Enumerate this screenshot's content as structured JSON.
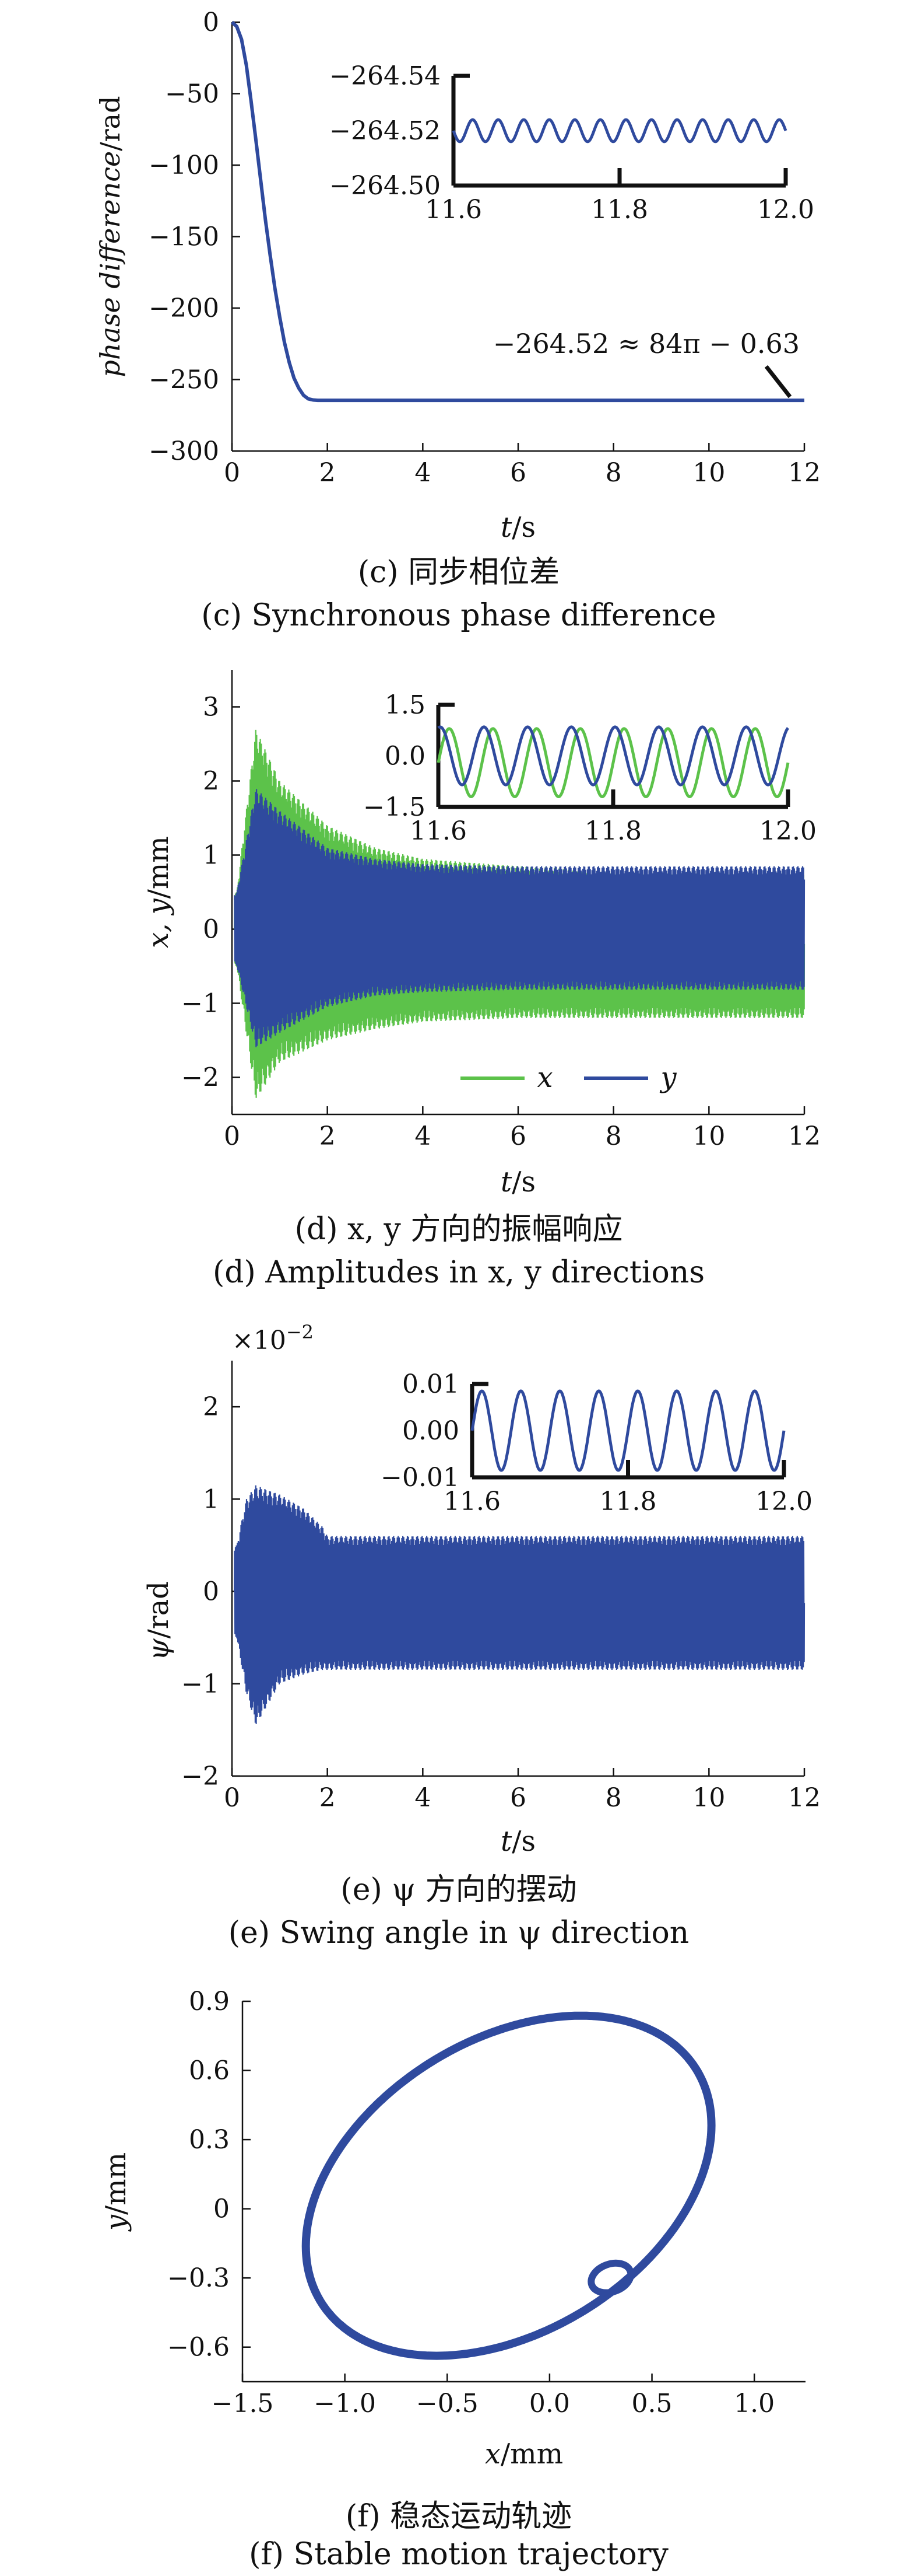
{
  "figure_captions": {
    "c_zh": "(c) 同步相位差",
    "c_en": "(c) Synchronous phase difference",
    "d_zh": "(d) x, y 方向的振幅响应",
    "d_en": "(d) Amplitudes in x, y directions",
    "e_zh": "(e) ψ 方向的摆动",
    "e_en": "(e) Swing angle in ψ direction",
    "f_zh": "(f) 稳态运动轨迹",
    "f_en": "(f) Stable motion trajectory"
  },
  "colors": {
    "green": "#5cc24a",
    "blue": "#2f4a9e",
    "axis": "#111111"
  },
  "chart_data": [
    {
      "id": "c",
      "type": "line",
      "xlabel": "t/s",
      "ylabel": "phase difference/rad",
      "xlim": [
        0,
        12
      ],
      "ylim": [
        -300,
        0
      ],
      "xticks": [
        0,
        2,
        4,
        6,
        8,
        10,
        12
      ],
      "yticks": [
        0,
        -50,
        -100,
        -150,
        -200,
        -250,
        -300
      ],
      "annotation": "−264.52 ≈ 84π − 0.63",
      "series": [
        {
          "color": "blue",
          "x": [
            0,
            0.1,
            0.2,
            0.3,
            0.4,
            0.5,
            0.6,
            0.7,
            0.8,
            0.9,
            1.0,
            1.1,
            1.2,
            1.3,
            1.4,
            1.5,
            1.6,
            1.7,
            1.8,
            2.0,
            4,
            6,
            8,
            10,
            12
          ],
          "y": [
            0,
            -3,
            -12,
            -30,
            -55,
            -82,
            -110,
            -138,
            -163,
            -186,
            -206,
            -224,
            -238,
            -249,
            -256,
            -261,
            -263.5,
            -264.3,
            -264.52,
            -264.52,
            -264.52,
            -264.52,
            -264.52,
            -264.52,
            -264.52
          ]
        }
      ],
      "inset": {
        "xlim": [
          11.6,
          12.0
        ],
        "ylim": [
          -264.5,
          -264.54
        ],
        "xticks": [
          11.6,
          11.8,
          12.0
        ],
        "yticks": [
          -264.54,
          -264.52,
          -264.5
        ],
        "series": [
          {
            "color": "blue",
            "mean": -264.52,
            "amplitude": 0.004,
            "cycles": 13
          }
        ]
      }
    },
    {
      "id": "d",
      "type": "line",
      "xlabel": "t/s",
      "ylabel": "x, y/mm",
      "xlim": [
        0,
        12
      ],
      "ylim": [
        -2.5,
        3.5
      ],
      "xticks": [
        0,
        2,
        4,
        6,
        8,
        10,
        12
      ],
      "yticks": [
        3,
        2,
        1,
        0,
        -1,
        -2
      ],
      "legend": [
        "x",
        "y"
      ],
      "series": [
        {
          "name": "x",
          "color": "green",
          "t": [
            0.1,
            0.5,
            1,
            2,
            3,
            4,
            6,
            8,
            12
          ],
          "upper": [
            0.5,
            2.7,
            2.0,
            1.4,
            1.1,
            0.95,
            0.85,
            0.8,
            0.8
          ],
          "lower": [
            -0.5,
            -2.3,
            -1.8,
            -1.5,
            -1.35,
            -1.25,
            -1.2,
            -1.2,
            -1.2
          ]
        },
        {
          "name": "y",
          "color": "blue",
          "t": [
            0.1,
            0.5,
            1,
            2,
            3,
            4,
            6,
            8,
            12
          ],
          "upper": [
            0.5,
            1.9,
            1.6,
            1.1,
            0.95,
            0.88,
            0.85,
            0.85,
            0.85
          ],
          "lower": [
            -0.5,
            -1.6,
            -1.4,
            -1.05,
            -0.9,
            -0.85,
            -0.82,
            -0.82,
            -0.82
          ]
        }
      ],
      "inset": {
        "xlim": [
          11.6,
          12.0
        ],
        "ylim": [
          -1.5,
          1.5
        ],
        "xticks": [
          11.6,
          11.8,
          12.0
        ],
        "yticks": [
          1.5,
          0,
          -1.5
        ],
        "series": [
          {
            "name": "x",
            "color": "green",
            "mean": -0.2,
            "amplitude": 1.0,
            "cycles": 8
          },
          {
            "name": "y",
            "color": "blue",
            "mean": 0.0,
            "amplitude": 0.85,
            "cycles": 8
          }
        ]
      }
    },
    {
      "id": "e",
      "type": "line",
      "xlabel": "t/s",
      "ylabel": "ψ/rad",
      "scale_note": "×10−2",
      "xlim": [
        0,
        12
      ],
      "ylim": [
        -2,
        2.5
      ],
      "xticks": [
        0,
        2,
        4,
        6,
        8,
        10,
        12
      ],
      "yticks": [
        2,
        1,
        0,
        -1,
        -2
      ],
      "series": [
        {
          "color": "blue",
          "t": [
            0.1,
            0.3,
            0.5,
            1.0,
            1.5,
            1.9,
            2.0,
            12
          ],
          "upper": [
            0.5,
            1.0,
            1.15,
            1.05,
            0.9,
            0.7,
            0.6,
            0.6
          ],
          "lower": [
            -0.5,
            -1.1,
            -1.45,
            -1.0,
            -0.9,
            -0.85,
            -0.85,
            -0.85
          ]
        }
      ],
      "inset": {
        "xlim": [
          11.6,
          12.0
        ],
        "ylim": [
          -0.01,
          0.01
        ],
        "xticks": [
          11.6,
          11.8,
          12.0
        ],
        "yticks": [
          0.01,
          0,
          -0.01
        ],
        "series": [
          {
            "color": "blue",
            "mean": 0.0,
            "amplitude": 0.0085,
            "cycles": 8
          }
        ]
      }
    },
    {
      "id": "f",
      "type": "line",
      "xlabel": "x/mm",
      "ylabel": "y/mm",
      "xlim": [
        -1.5,
        1.25
      ],
      "ylim": [
        -0.75,
        0.9
      ],
      "xticks": [
        -1.5,
        -1.0,
        -0.5,
        0,
        0.5,
        1.0
      ],
      "yticks": [
        0.9,
        0.6,
        0.3,
        0,
        -0.3,
        -0.6
      ],
      "series": [
        {
          "color": "blue",
          "center": [
            -0.2,
            0.1
          ],
          "radii": [
            1.05,
            0.65
          ],
          "rotation_deg": 25,
          "small_loop": {
            "center": [
              0.3,
              -0.3
            ],
            "radii": [
              0.1,
              0.06
            ]
          }
        }
      ]
    }
  ]
}
